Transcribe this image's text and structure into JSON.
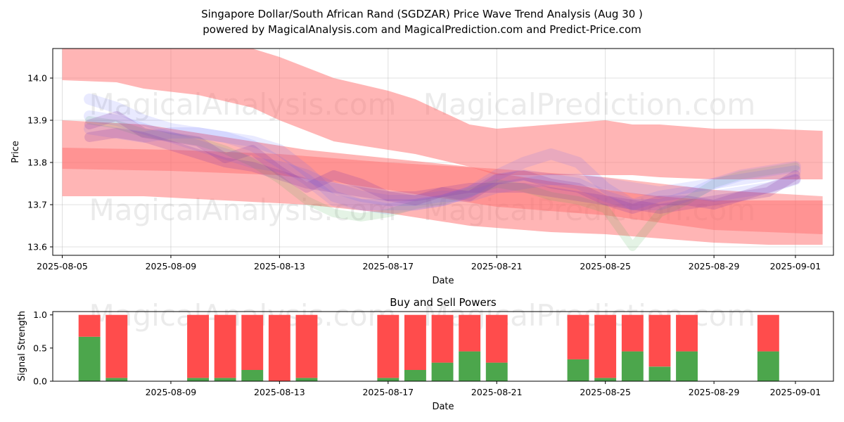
{
  "chart_data": [
    {
      "type": "line",
      "title_line1": "Singapore Dollar/South African Rand (SGDZAR) Price Wave Trend Analysis (Aug 30 )",
      "title_line2": "powered by MagicalAnalysis.com and MagicalPrediction.com and Predict-Price.com",
      "xlabel": "Date",
      "ylabel": "Price",
      "xlim": [
        -0.35,
        28.4
      ],
      "ylim": [
        13.58,
        14.07
      ],
      "x_ticks": [
        {
          "day": 0,
          "label": "2025-08-05"
        },
        {
          "day": 4,
          "label": "2025-08-09"
        },
        {
          "day": 8,
          "label": "2025-08-13"
        },
        {
          "day": 12,
          "label": "2025-08-17"
        },
        {
          "day": 16,
          "label": "2025-08-21"
        },
        {
          "day": 20,
          "label": "2025-08-25"
        },
        {
          "day": 24,
          "label": "2025-08-29"
        },
        {
          "day": 27,
          "label": "2025-09-01"
        }
      ],
      "y_ticks": [
        13.6,
        13.7,
        13.8,
        13.9,
        14.0
      ],
      "grid": true,
      "watermarks": [
        "MagicalAnalysis.com",
        "MagicalPrediction.com",
        "MagicalAnalysis.com",
        "MagicalPrediction.com"
      ],
      "red_bands": [
        {
          "name": "upper wave band",
          "x": [
            0,
            2,
            3,
            5,
            7,
            8,
            10,
            12,
            13,
            15,
            16,
            18,
            20,
            21,
            22,
            24,
            26,
            28
          ],
          "upper": [
            14.07,
            14.07,
            14.07,
            14.07,
            14.07,
            14.05,
            14.0,
            13.97,
            13.95,
            13.89,
            13.88,
            13.89,
            13.9,
            13.89,
            13.89,
            13.88,
            13.88,
            13.875
          ],
          "lower": [
            13.995,
            13.99,
            13.975,
            13.96,
            13.93,
            13.9,
            13.85,
            13.83,
            13.82,
            13.79,
            13.77,
            13.77,
            13.77,
            13.77,
            13.765,
            13.76,
            13.76,
            13.76
          ]
        },
        {
          "name": "lower wave band",
          "x": [
            0,
            3,
            6,
            9,
            12,
            15,
            16,
            18,
            20,
            22,
            24,
            26,
            28
          ],
          "upper": [
            13.9,
            13.89,
            13.86,
            13.83,
            13.81,
            13.79,
            13.775,
            13.755,
            13.735,
            13.72,
            13.71,
            13.71,
            13.71
          ],
          "lower": [
            13.72,
            13.72,
            13.71,
            13.7,
            13.68,
            13.65,
            13.645,
            13.635,
            13.63,
            13.62,
            13.61,
            13.605,
            13.605
          ]
        },
        {
          "name": "center wave band",
          "x": [
            0,
            4,
            8,
            12,
            16,
            20,
            24,
            28
          ],
          "upper": [
            13.835,
            13.83,
            13.82,
            13.8,
            13.785,
            13.765,
            13.735,
            13.72
          ],
          "lower": [
            13.785,
            13.78,
            13.77,
            13.735,
            13.695,
            13.675,
            13.64,
            13.63
          ]
        }
      ],
      "blue_waves": [
        {
          "x": [
            1,
            2,
            3,
            4,
            5,
            6,
            7,
            8,
            9,
            10,
            11,
            12,
            13,
            14,
            15,
            16,
            17,
            18,
            19,
            20,
            21,
            22,
            23,
            24,
            25,
            26,
            27
          ],
          "y": [
            13.95,
            13.93,
            13.9,
            13.88,
            13.87,
            13.86,
            13.85,
            13.83,
            13.78,
            13.72,
            13.7,
            13.69,
            13.7,
            13.71,
            13.73,
            13.76,
            13.77,
            13.76,
            13.75,
            13.72,
            13.7,
            13.72,
            13.73,
            13.72,
            13.73,
            13.74,
            13.76
          ]
        },
        {
          "x": [
            1,
            2,
            3,
            4,
            5,
            6,
            7,
            8,
            9,
            10,
            11,
            12,
            13,
            14,
            15,
            16,
            17,
            18,
            19,
            20,
            21,
            22,
            23,
            24,
            25,
            26,
            27
          ],
          "y": [
            13.91,
            13.9,
            13.88,
            13.86,
            13.84,
            13.82,
            13.8,
            13.79,
            13.77,
            13.74,
            13.72,
            13.71,
            13.71,
            13.72,
            13.72,
            13.74,
            13.75,
            13.76,
            13.76,
            13.75,
            13.74,
            13.73,
            13.74,
            13.75,
            13.76,
            13.77,
            13.78
          ]
        },
        {
          "x": [
            1,
            2,
            3,
            4,
            5,
            6,
            7,
            8,
            9,
            10,
            11,
            12,
            13,
            14,
            15,
            16,
            17,
            18,
            19,
            20,
            21,
            22,
            23,
            24,
            25,
            26,
            27
          ],
          "y": [
            13.88,
            13.87,
            13.86,
            13.87,
            13.87,
            13.86,
            13.84,
            13.8,
            13.76,
            13.71,
            13.7,
            13.7,
            13.7,
            13.71,
            13.73,
            13.77,
            13.8,
            13.82,
            13.8,
            13.74,
            13.7,
            13.7,
            13.72,
            13.75,
            13.77,
            13.78,
            13.79
          ]
        }
      ],
      "purple_waves": [
        {
          "x": [
            1,
            2,
            3,
            4,
            5,
            6,
            7,
            8,
            9,
            10,
            11,
            12,
            13,
            14,
            15,
            16,
            17,
            18,
            19,
            20,
            21,
            22,
            23,
            24,
            25,
            26,
            27
          ],
          "y": [
            13.89,
            13.91,
            13.87,
            13.86,
            13.85,
            13.81,
            13.83,
            13.78,
            13.74,
            13.77,
            13.75,
            13.72,
            13.71,
            13.73,
            13.72,
            13.76,
            13.77,
            13.75,
            13.74,
            13.71,
            13.69,
            13.71,
            13.71,
            13.7,
            13.72,
            13.73,
            13.77
          ]
        },
        {
          "x": [
            1,
            2,
            3,
            4,
            5,
            6,
            7,
            8,
            9,
            10,
            11,
            12,
            13,
            14,
            15,
            16,
            17,
            18,
            19,
            20,
            21,
            22,
            23,
            24,
            25,
            26,
            27
          ],
          "y": [
            13.86,
            13.87,
            13.86,
            13.84,
            13.82,
            13.8,
            13.79,
            13.77,
            13.75,
            13.74,
            13.73,
            13.72,
            13.72,
            13.73,
            13.74,
            13.74,
            13.74,
            13.73,
            13.72,
            13.71,
            13.7,
            13.69,
            13.7,
            13.71,
            13.72,
            13.74,
            13.76
          ]
        }
      ],
      "green_waves": [
        {
          "x": [
            1,
            2,
            3,
            4,
            5,
            6,
            7,
            8,
            9,
            10,
            11,
            12,
            13,
            14,
            15,
            16,
            17,
            18,
            19,
            20,
            21,
            22,
            23,
            24,
            25,
            26,
            27
          ],
          "y": [
            13.9,
            13.89,
            13.87,
            13.86,
            13.85,
            13.83,
            13.8,
            13.76,
            13.71,
            13.68,
            13.67,
            13.68,
            13.7,
            13.71,
            13.73,
            13.75,
            13.74,
            13.72,
            13.71,
            13.69,
            13.6,
            13.68,
            13.71,
            13.75,
            13.77,
            13.78,
            13.79
          ]
        }
      ]
    },
    {
      "type": "bar",
      "title": "Buy and Sell Powers",
      "xlabel": "Date",
      "ylabel": "Signal Strength",
      "xlim": [
        -0.35,
        28.4
      ],
      "ylim": [
        0,
        1.05
      ],
      "y_ticks": [
        {
          "value": 0.0,
          "label": "0.0"
        },
        {
          "value": 0.5,
          "label": "0.5"
        },
        {
          "value": 1.0,
          "label": "1.0"
        }
      ],
      "x_ticks": [
        {
          "day": 4,
          "label": "2025-08-09"
        },
        {
          "day": 8,
          "label": "2025-08-13"
        },
        {
          "day": 12,
          "label": "2025-08-17"
        },
        {
          "day": 16,
          "label": "2025-08-21"
        },
        {
          "day": 20,
          "label": "2025-08-25"
        },
        {
          "day": 24,
          "label": "2025-08-29"
        },
        {
          "day": 27,
          "label": "2025-09-01"
        }
      ],
      "series": [
        {
          "name": "Buy",
          "color": "#4ca64c",
          "values": [
            0.67,
            0.05,
            0.05,
            0.05,
            0.17,
            0.0,
            0.05,
            0.05,
            0.17,
            0.28,
            0.45,
            0.28,
            0.33,
            0.05,
            0.45,
            0.22,
            0.45,
            0.45
          ]
        },
        {
          "name": "Sell",
          "color": "#ff4c4c",
          "values": [
            0.33,
            0.95,
            0.95,
            0.95,
            0.83,
            1.0,
            0.95,
            0.95,
            0.83,
            0.72,
            0.55,
            0.72,
            0.67,
            0.95,
            0.55,
            0.78,
            0.55,
            0.55
          ]
        }
      ],
      "days": [
        1,
        2,
        5,
        6,
        7,
        8,
        9,
        12,
        13,
        14,
        15,
        16,
        19,
        20,
        21,
        22,
        23,
        26
      ],
      "watermarks": [
        "MagicalAnalysis.com",
        "MagicalPrediction.com"
      ]
    }
  ]
}
